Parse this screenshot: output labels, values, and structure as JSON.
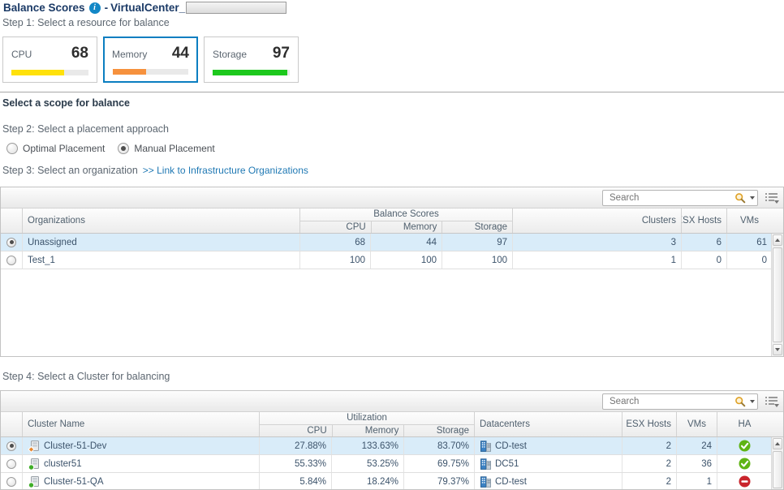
{
  "header": {
    "title": "Balance Scores",
    "info_icon": "i",
    "separator": "-",
    "subtitle": "VirtualCenter_"
  },
  "steps": {
    "step1": "Step 1: Select a resource for balance",
    "scope_heading": "Select a scope for balance",
    "step2": "Step 2: Select a placement approach",
    "step3": "Step 3: Select an organization",
    "step3_link": ">> Link to Infrastructure Organizations",
    "step4": "Step 4: Select a Cluster for balancing"
  },
  "resource_cards": [
    {
      "label": "CPU",
      "score": "68",
      "bar_percent": 68,
      "bar_color": "#ffe10a",
      "selected": false
    },
    {
      "label": "Memory",
      "score": "44",
      "bar_percent": 44,
      "bar_color": "#f6913d",
      "selected": true
    },
    {
      "label": "Storage",
      "score": "97",
      "bar_percent": 97,
      "bar_color": "#1dc81d",
      "selected": false
    }
  ],
  "placement_options": [
    {
      "label": "Optimal Placement",
      "selected": false
    },
    {
      "label": "Manual Placement",
      "selected": true
    }
  ],
  "org_table": {
    "search": {
      "placeholder": "Search"
    },
    "headers": {
      "rowlabel": "Organizations",
      "group": "Balance Scores",
      "sub": [
        "CPU",
        "Memory",
        "Storage"
      ],
      "clusters": "Clusters",
      "esx_hosts": "ESX Hosts",
      "vms": "VMs"
    },
    "rows": [
      {
        "selected": true,
        "organization": "Unassigned",
        "cpu": "68",
        "memory": "44",
        "storage": "97",
        "clusters": "3",
        "esx_hosts": "6",
        "vms": "61"
      },
      {
        "selected": false,
        "organization": "Test_1",
        "cpu": "100",
        "memory": "100",
        "storage": "100",
        "clusters": "1",
        "esx_hosts": "0",
        "vms": "0"
      }
    ]
  },
  "cluster_table": {
    "search": {
      "placeholder": "Search"
    },
    "headers": {
      "rowlabel": "Cluster Name",
      "group": "Utilization",
      "sub": [
        "CPU",
        "Memory",
        "Storage"
      ],
      "datacenters": "Datacenters",
      "esx_hosts": "ESX Hosts",
      "vms": "VMs",
      "ha": "HA"
    },
    "rows": [
      {
        "selected": true,
        "name": "Cluster-51-Dev",
        "badge": "warning",
        "cpu": "27.88%",
        "memory": "133.63%",
        "storage": "83.70%",
        "datacenter": "CD-test",
        "esx_hosts": "2",
        "vms": "24",
        "ha": "on"
      },
      {
        "selected": false,
        "name": "cluster51",
        "badge": "ok",
        "cpu": "55.33%",
        "memory": "53.25%",
        "storage": "69.75%",
        "datacenter": "DC51",
        "esx_hosts": "2",
        "vms": "36",
        "ha": "on"
      },
      {
        "selected": false,
        "name": "Cluster-51-QA",
        "badge": "ok",
        "cpu": "5.84%",
        "memory": "18.24%",
        "storage": "79.37%",
        "datacenter": "CD-test",
        "esx_hosts": "2",
        "vms": "1",
        "ha": "off"
      }
    ]
  },
  "colors": {
    "accent_blue": "#0b7ec1",
    "link_blue": "#2079b4",
    "selected_row": "#d9ecf9",
    "ha_on": "#5fb414",
    "ha_off": "#c9242c",
    "badge_ok": "#3fae29",
    "badge_warning": "#e8872e"
  }
}
